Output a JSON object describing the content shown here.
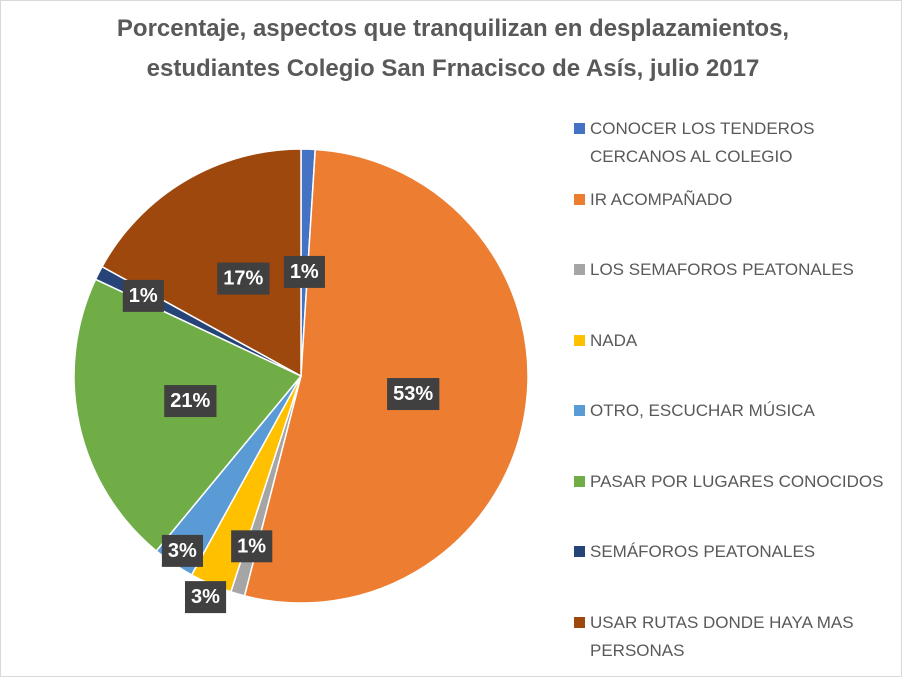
{
  "chart_data": {
    "type": "pie",
    "title": "Porcentaje, aspectos que tranquilizan en desplazamientos, estudiantes Colegio San Frnacisco de Asís, julio 2017",
    "categories": [
      "CONOCER LOS TENDEROS CERCANOS AL COLEGIO",
      "IR ACOMPAÑADO",
      "LOS SEMAFOROS PEATONALES",
      "NADA",
      "OTRO, ESCUCHAR MÚSICA",
      "PASAR POR LUGARES CONOCIDOS",
      "SEMÁFOROS PEATONALES",
      "USAR RUTAS DONDE HAYA MAS PERSONAS"
    ],
    "values": [
      1,
      53,
      1,
      3,
      3,
      21,
      1,
      17
    ],
    "value_labels": [
      "1%",
      "53%",
      "1%",
      "3%",
      "3%",
      "21%",
      "1%",
      "17%"
    ],
    "colors": [
      "#4472c4",
      "#ed7d31",
      "#a5a5a5",
      "#ffc000",
      "#5b9bd5",
      "#70ad47",
      "#264478",
      "#9e480e"
    ],
    "legend": "right"
  }
}
